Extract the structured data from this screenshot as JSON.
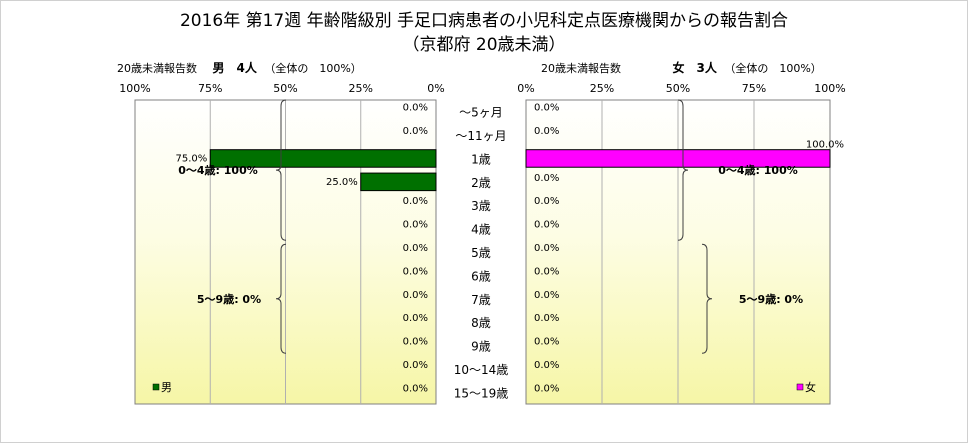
{
  "chart_data": {
    "type": "bar",
    "title": "2016年 第17週 年齢階級別 手足口病患者の小児科定点医療機関からの報告割合",
    "subtitle": "（京都府 20歳未満）",
    "categories": [
      "～5ヶ月",
      "～11ヶ月",
      "1歳",
      "2歳",
      "3歳",
      "4歳",
      "5歳",
      "6歳",
      "7歳",
      "8歳",
      "9歳",
      "10～14歳",
      "15～19歳"
    ],
    "xlim": [
      0,
      100
    ],
    "ticks": [
      "100%",
      "75%",
      "50%",
      "25%",
      "0%"
    ],
    "ticks_right": [
      "0%",
      "25%",
      "50%",
      "75%",
      "100%"
    ],
    "series": [
      {
        "name": "男",
        "color": "#007000",
        "values": [
          0.0,
          0.0,
          75.0,
          25.0,
          0.0,
          0.0,
          0.0,
          0.0,
          0.0,
          0.0,
          0.0,
          0.0,
          0.0
        ],
        "labels": [
          "0.0%",
          "0.0%",
          "75.0%",
          "25.0%",
          "0.0%",
          "0.0%",
          "0.0%",
          "0.0%",
          "0.0%",
          "0.0%",
          "0.0%",
          "0.0%",
          "0.0%"
        ],
        "header_left": "20歳未満報告数",
        "header_bold": "男　4人",
        "header_right": "（全体の　100%）",
        "groups": [
          {
            "label": "0～4歳: 100%",
            "from": 0,
            "to": 5
          },
          {
            "label": "5～9歳: 0%",
            "from": 6,
            "to": 10
          }
        ]
      },
      {
        "name": "女",
        "color": "#ff00ff",
        "values": [
          0.0,
          0.0,
          100.0,
          0.0,
          0.0,
          0.0,
          0.0,
          0.0,
          0.0,
          0.0,
          0.0,
          0.0,
          0.0
        ],
        "labels": [
          "0.0%",
          "0.0%",
          "100.0%",
          "0.0%",
          "0.0%",
          "0.0%",
          "0.0%",
          "0.0%",
          "0.0%",
          "0.0%",
          "0.0%",
          "0.0%",
          "0.0%"
        ],
        "header_left": "20歳未満報告数",
        "header_bold": "女　3人",
        "header_right": "（全体の　100%）",
        "groups": [
          {
            "label": "0～4歳: 100%",
            "from": 0,
            "to": 5
          },
          {
            "label": "5～9歳: 0%",
            "from": 6,
            "to": 10
          }
        ]
      }
    ],
    "grid": true,
    "legend": "bottom-left / bottom-right"
  }
}
